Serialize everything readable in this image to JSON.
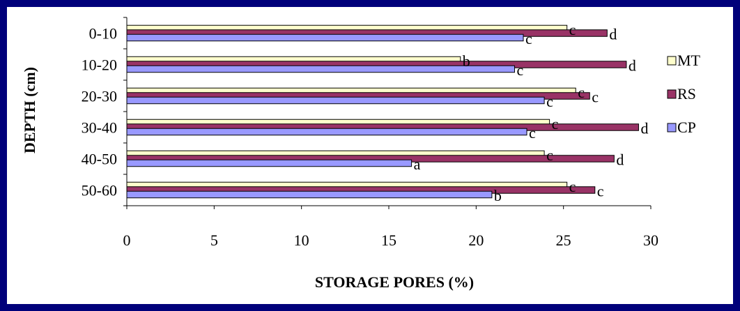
{
  "chart_data": {
    "type": "bar",
    "orientation": "horizontal",
    "title": "",
    "xlabel": "STORAGE PORES (%)",
    "ylabel": "DEPTH (cm)",
    "xlim": [
      0,
      30
    ],
    "xticks": [
      0,
      5,
      10,
      15,
      20,
      25,
      30
    ],
    "grid": false,
    "legend_position": "right",
    "categories": [
      "0-10",
      "10-20",
      "20-30",
      "30-40",
      "40-50",
      "50-60"
    ],
    "series": [
      {
        "name": "MT",
        "color": "#ffffcc",
        "values": [
          25.2,
          19.1,
          25.7,
          24.2,
          23.9,
          25.2
        ],
        "labels": [
          "c",
          "b",
          "c",
          "c",
          "c",
          "c"
        ]
      },
      {
        "name": "RS",
        "color": "#993366",
        "values": [
          27.5,
          28.6,
          26.5,
          29.3,
          27.9,
          26.8
        ],
        "labels": [
          "d",
          "d",
          "c",
          "d",
          "d",
          "c"
        ]
      },
      {
        "name": "CP",
        "color": "#9999ff",
        "values": [
          22.7,
          22.2,
          23.9,
          22.9,
          16.3,
          20.9
        ],
        "labels": [
          "c",
          "c",
          "c",
          "c",
          "a",
          "b"
        ]
      }
    ]
  }
}
